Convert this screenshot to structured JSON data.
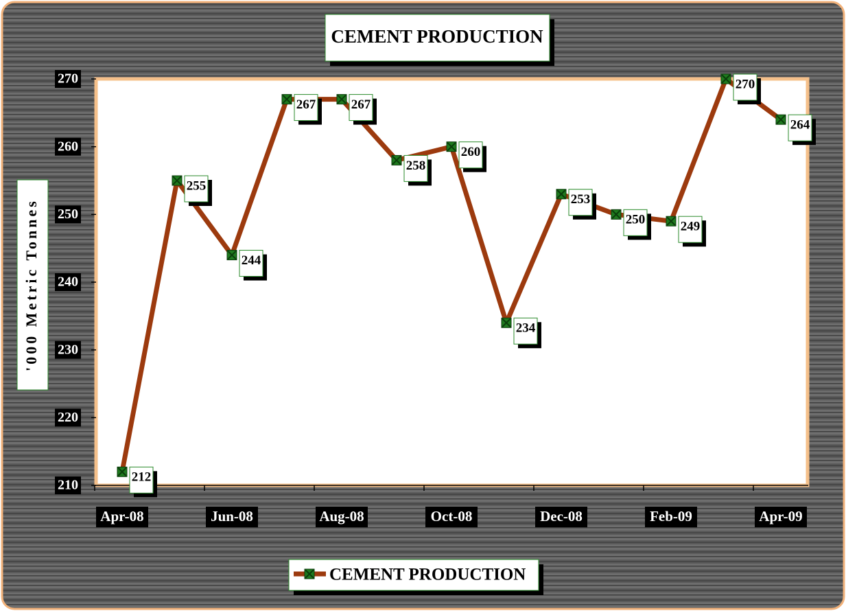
{
  "chart_data": {
    "type": "line",
    "title": "CEMENT PRODUCTION",
    "y_label": "'000 Metric Tonnes",
    "categories": [
      "Apr-08",
      null,
      "Jun-08",
      null,
      "Aug-08",
      null,
      "Oct-08",
      null,
      "Dec-08",
      null,
      "Feb-09",
      null,
      "Apr-09"
    ],
    "series": [
      {
        "name": "CEMENT PRODUCTION",
        "color": "#9c3a0e",
        "marker_color": "#1e7a1e",
        "values": [
          212,
          255,
          244,
          267,
          267,
          258,
          260,
          234,
          253,
          250,
          249,
          270,
          264
        ]
      }
    ],
    "ylim": [
      210,
      270
    ],
    "yticks": [
      210,
      220,
      230,
      240,
      250,
      260,
      270
    ],
    "legend": "bottom",
    "data_labels": true
  }
}
